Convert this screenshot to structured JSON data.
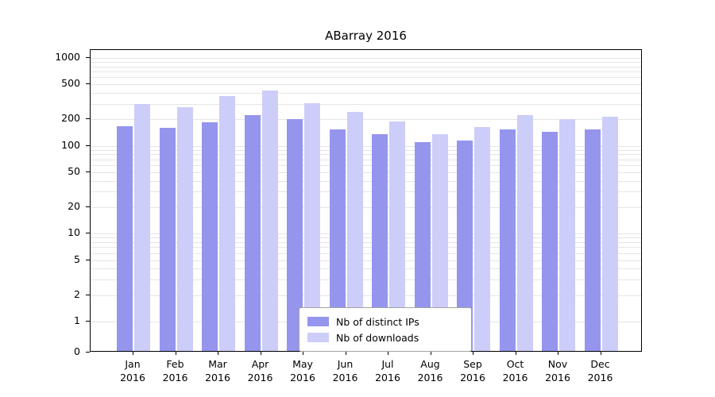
{
  "title": "ABarray 2016",
  "legend": {
    "items": [
      {
        "label": "Nb of distinct IPs",
        "color": "#9595ee"
      },
      {
        "label": "Nb of downloads",
        "color": "#cdcdf9"
      }
    ]
  },
  "chart_data": {
    "type": "bar",
    "title": "ABarray 2016",
    "categories": [
      "Jan",
      "Feb",
      "Mar",
      "Apr",
      "May",
      "Jun",
      "Jul",
      "Aug",
      "Sep",
      "Oct",
      "Nov",
      "Dec"
    ],
    "year": "2016",
    "series": [
      {
        "name": "Nb of distinct IPs",
        "color": "#9595ee",
        "values": [
          160,
          152,
          178,
          215,
          195,
          148,
          130,
          106,
          110,
          148,
          138,
          148
        ]
      },
      {
        "name": "Nb of downloads",
        "color": "#cdcdf9",
        "values": [
          285,
          265,
          355,
          410,
          295,
          235,
          182,
          130,
          158,
          215,
          192,
          205
        ]
      }
    ],
    "xlabel": "",
    "ylabel": "",
    "yscale": "log",
    "yticks": [
      0,
      1,
      2,
      5,
      10,
      20,
      50,
      100,
      200,
      500,
      1000
    ],
    "ylim": [
      0,
      1100
    ],
    "grid": true,
    "legend_position": "bottom-center"
  }
}
